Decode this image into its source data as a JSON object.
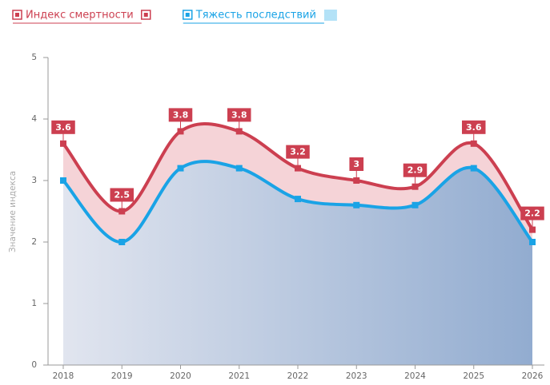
{
  "chart_data": {
    "type": "line",
    "y_label": "Значение индекса",
    "categories": [
      "2018",
      "2019",
      "2020",
      "2021",
      "2022",
      "2023",
      "2024",
      "2025",
      "2026"
    ],
    "series": [
      {
        "name": "Индекс смертности",
        "color": "#cc3f50",
        "values": [
          3.6,
          2.5,
          3.8,
          3.8,
          3.2,
          3,
          2.9,
          3.6,
          2.2
        ]
      },
      {
        "name": "Тяжесть последствий",
        "color": "#1aa3e6",
        "values": [
          3,
          2,
          3.2,
          3.2,
          2.7,
          2.6,
          2.6,
          3.2,
          2
        ]
      }
    ],
    "ylim": [
      0,
      5
    ],
    "yticks": [
      0,
      1,
      2,
      3,
      4,
      5
    ]
  }
}
